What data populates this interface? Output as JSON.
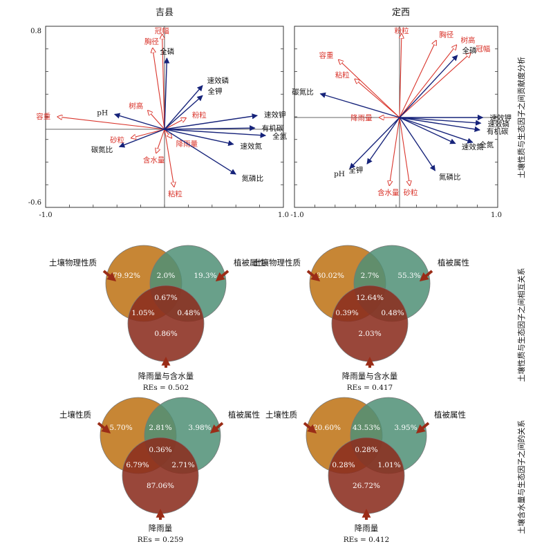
{
  "colors": {
    "soil_arrow": "#d9342b",
    "factor_arrow": "#16237a",
    "soil_label": "#d9342b",
    "factor_label": "#111111",
    "circle_soil": "#c4802a",
    "circle_veg": "#4f8f76",
    "circle_rain": "#8b2e1f",
    "pointer": "#9a2c17"
  },
  "titles": {
    "left": "吉县",
    "right": "定西"
  },
  "row_labels": {
    "row1": "土壤性质与生态因子之间贡献度分析",
    "row2": "土壤性质与生态因子之间相互关系",
    "row3": "土壤含水量与生态因子之间的关系"
  },
  "pca": [
    {
      "ytick_top": "0.8",
      "ytick_bottom": "-0.6",
      "xtick_left": "-1.0",
      "xtick_right": "1.0",
      "xlim": [
        -1.0,
        1.0
      ],
      "ylim": [
        -0.65,
        0.8
      ],
      "red_vectors": [
        {
          "label": "冠幅",
          "x": -0.02,
          "y": 0.76
        },
        {
          "label": "胸径",
          "x": -0.1,
          "y": 0.65
        },
        {
          "label": "容重",
          "x": -0.9,
          "y": 0.1
        },
        {
          "label": "树高",
          "x": -0.14,
          "y": 0.15
        },
        {
          "label": "粉粒",
          "x": 0.18,
          "y": 0.09
        },
        {
          "label": "砂粒",
          "x": -0.28,
          "y": -0.07
        },
        {
          "label": "含水量",
          "x": -0.07,
          "y": -0.19
        },
        {
          "label": "降雨量",
          "x": 0.06,
          "y": -0.07
        },
        {
          "label": "粘粒",
          "x": 0.08,
          "y": -0.46
        }
      ],
      "blue_vectors": [
        {
          "label": "全磷",
          "x": 0.02,
          "y": 0.57
        },
        {
          "label": "速效磷",
          "x": 0.32,
          "y": 0.35
        },
        {
          "label": "全钾",
          "x": 0.32,
          "y": 0.27
        },
        {
          "label": "pH",
          "x": -0.42,
          "y": 0.12
        },
        {
          "label": "速效钾",
          "x": 0.78,
          "y": 0.11
        },
        {
          "label": "有机碳",
          "x": 0.76,
          "y": 0.01
        },
        {
          "label": "全氮",
          "x": 0.85,
          "y": -0.05
        },
        {
          "label": "速效氮",
          "x": 0.58,
          "y": -0.12
        },
        {
          "label": "碳氮比",
          "x": -0.38,
          "y": -0.14
        },
        {
          "label": "氮磷比",
          "x": 0.6,
          "y": -0.36
        }
      ]
    },
    {
      "xtick_left": "-1.0",
      "xtick_right": "1.0",
      "xlim": [
        -1.0,
        1.0
      ],
      "ylim": [
        -0.8,
        0.8
      ],
      "red_vectors": [
        {
          "label": "粉粒",
          "x": 0.02,
          "y": 0.74
        },
        {
          "label": "胸径",
          "x": 0.36,
          "y": 0.68
        },
        {
          "label": "树高",
          "x": 0.56,
          "y": 0.64
        },
        {
          "label": "冠幅",
          "x": 0.7,
          "y": 0.57
        },
        {
          "label": "容重",
          "x": -0.6,
          "y": 0.51
        },
        {
          "label": "粘粒",
          "x": -0.44,
          "y": 0.34
        },
        {
          "label": "降雨量",
          "x": -0.2,
          "y": 0.0
        },
        {
          "label": "含水量",
          "x": -0.1,
          "y": -0.6
        },
        {
          "label": "砂粒",
          "x": 0.1,
          "y": -0.6
        }
      ],
      "blue_vectors": [
        {
          "label": "全磷",
          "x": 0.57,
          "y": 0.55
        },
        {
          "label": "碳氮比",
          "x": -0.78,
          "y": 0.21
        },
        {
          "label": "速效钾",
          "x": 0.82,
          "y": 0.0
        },
        {
          "label": "速效磷",
          "x": 0.8,
          "y": -0.05
        },
        {
          "label": "有机碳",
          "x": 0.79,
          "y": -0.11
        },
        {
          "label": "全氮",
          "x": 0.72,
          "y": -0.22
        },
        {
          "label": "速效氮",
          "x": 0.55,
          "y": -0.23
        },
        {
          "label": "全钾",
          "x": -0.32,
          "y": -0.41
        },
        {
          "label": "pH",
          "x": -0.49,
          "y": -0.45
        },
        {
          "label": "氮磷比",
          "x": 0.35,
          "y": -0.47
        }
      ]
    }
  ],
  "venns": [
    {
      "label_left": "土壤物理性质",
      "label_right": "植被属性",
      "label_bottom": "降雨量与含水量",
      "v_soil": "79.92%",
      "v_soil_veg": "2.0%",
      "v_veg": "19.3%",
      "v_center": "0.67%",
      "v_soil_rain": "1.05%",
      "v_veg_rain": "0.48%",
      "v_rain": "0.86%",
      "res": "REs = 0.502"
    },
    {
      "label_left": "土壤物理性质",
      "label_right": "植被属性",
      "label_bottom": "降雨量与含水量",
      "v_soil": "30.02%",
      "v_soil_veg": "2.7%",
      "v_veg": "55.3%",
      "v_center": "12.64%",
      "v_soil_rain": "0.39%",
      "v_veg_rain": "0.48%",
      "v_rain": "2.03%",
      "res": "REs = 0.417"
    },
    {
      "label_left": "土壤性质",
      "label_right": "植被属性",
      "label_bottom": "降雨量",
      "v_soil": "5.70%",
      "v_soil_veg": "2.81%",
      "v_veg": "3.98%",
      "v_center": "0.36%",
      "v_soil_rain": "6.79%",
      "v_veg_rain": "2.71%",
      "v_rain": "87.06%",
      "res": "REs = 0.259"
    },
    {
      "label_left": "土壤性质",
      "label_right": "植被属性",
      "label_bottom": "降雨量",
      "v_soil": "20.60%",
      "v_soil_veg": "43.53%",
      "v_veg": "3.95%",
      "v_center": "0.28%",
      "v_soil_rain": "0.28%",
      "v_veg_rain": "1.01%",
      "v_rain": "26.72%",
      "res": "REs = 0.412"
    }
  ]
}
